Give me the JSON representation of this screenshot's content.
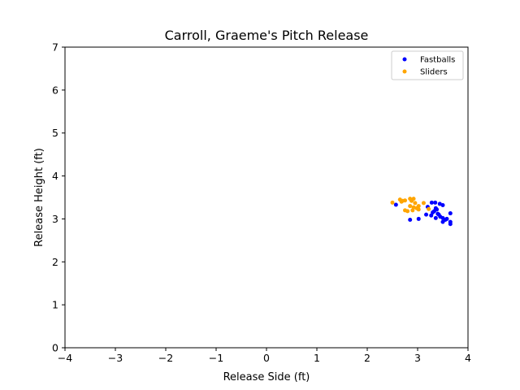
{
  "chart_data": {
    "type": "scatter",
    "title": "Carroll, Graeme's Pitch Release",
    "xlabel": "Release Side (ft)",
    "ylabel": "Release Height (ft)",
    "xlim": [
      -4,
      4
    ],
    "ylim": [
      0,
      7
    ],
    "xticks": [
      -4,
      -3,
      -2,
      -1,
      0,
      1,
      2,
      3,
      4
    ],
    "xtick_labels": [
      "−4",
      "−3",
      "−2",
      "−1",
      "0",
      "1",
      "2",
      "3",
      "4"
    ],
    "yticks": [
      0,
      1,
      2,
      3,
      4,
      5,
      6,
      7
    ],
    "ytick_labels": [
      "0",
      "1",
      "2",
      "3",
      "4",
      "5",
      "6",
      "7"
    ],
    "grid": false,
    "legend_position": "top-right",
    "series": [
      {
        "name": "Fastballs",
        "color": "#0000ff",
        "points": [
          [
            2.57,
            3.33
          ],
          [
            3.2,
            3.28
          ],
          [
            3.28,
            3.38
          ],
          [
            3.35,
            3.38
          ],
          [
            3.44,
            3.35
          ],
          [
            3.5,
            3.32
          ],
          [
            3.38,
            3.22
          ],
          [
            3.33,
            3.18
          ],
          [
            3.4,
            3.12
          ],
          [
            3.17,
            3.1
          ],
          [
            3.27,
            3.08
          ],
          [
            3.45,
            3.05
          ],
          [
            3.5,
            3.02
          ],
          [
            3.36,
            3.02
          ],
          [
            3.65,
            3.13
          ],
          [
            2.85,
            2.98
          ],
          [
            3.02,
            3.0
          ],
          [
            3.55,
            2.98
          ],
          [
            3.5,
            2.93
          ],
          [
            3.65,
            2.93
          ],
          [
            3.65,
            2.88
          ],
          [
            3.42,
            3.1
          ],
          [
            3.3,
            3.15
          ],
          [
            3.58,
            3.0
          ],
          [
            3.36,
            3.25
          ]
        ]
      },
      {
        "name": "Sliders",
        "color": "#ffa500",
        "points": [
          [
            2.5,
            3.38
          ],
          [
            2.65,
            3.45
          ],
          [
            2.7,
            3.42
          ],
          [
            2.75,
            3.43
          ],
          [
            2.85,
            3.47
          ],
          [
            2.88,
            3.42
          ],
          [
            2.92,
            3.47
          ],
          [
            2.95,
            3.37
          ],
          [
            3.02,
            3.3
          ],
          [
            3.12,
            3.37
          ],
          [
            2.85,
            3.3
          ],
          [
            2.92,
            3.27
          ],
          [
            2.98,
            3.25
          ],
          [
            3.02,
            3.22
          ],
          [
            2.75,
            3.2
          ],
          [
            2.8,
            3.18
          ],
          [
            2.9,
            3.2
          ],
          [
            3.22,
            3.23
          ],
          [
            2.68,
            3.4
          ]
        ]
      }
    ]
  }
}
